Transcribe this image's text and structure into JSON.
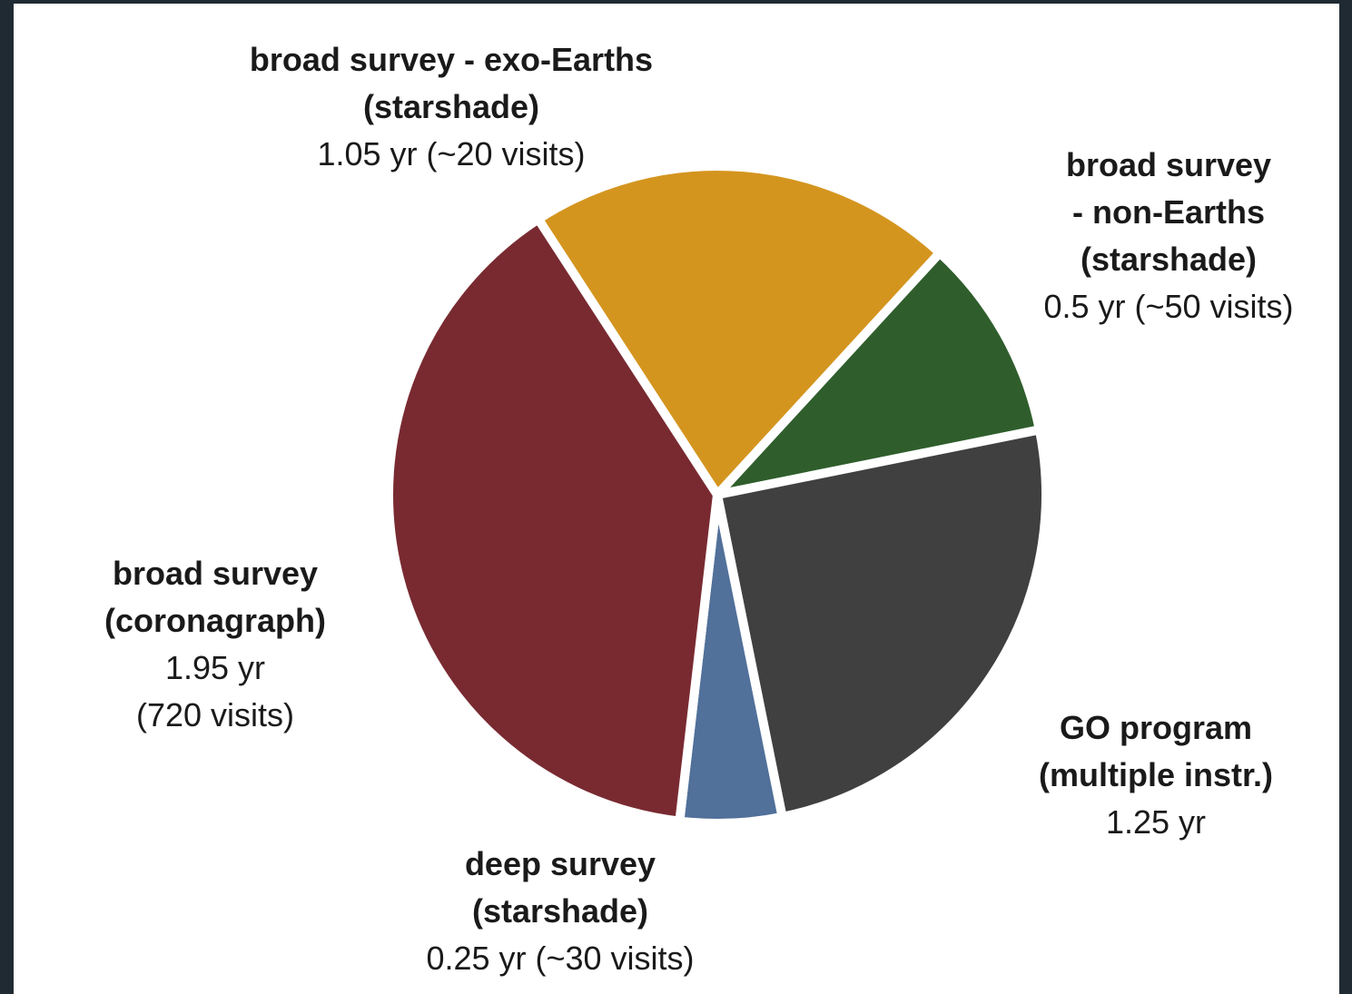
{
  "chart_data": {
    "type": "pie",
    "categories": [
      "broad survey - exo-Earths\n(starshade)",
      "broad survey\n- non-Earths\n(starshade)",
      "GO program\n(multiple instr.)",
      "deep survey\n(starshade)",
      "broad survey\n(coronagraph)"
    ],
    "values": [
      1.05,
      0.5,
      1.25,
      0.25,
      1.95
    ],
    "value_labels": [
      "1.05 yr (~20 visits)",
      "0.5 yr (~50 visits)",
      "1.25 yr",
      "0.25 yr (~30 visits)",
      "1.95 yr\n(720 visits)"
    ],
    "colors": [
      "#d4951f",
      "#2f5e2c",
      "#404040",
      "#51709a",
      "#792a31"
    ]
  }
}
